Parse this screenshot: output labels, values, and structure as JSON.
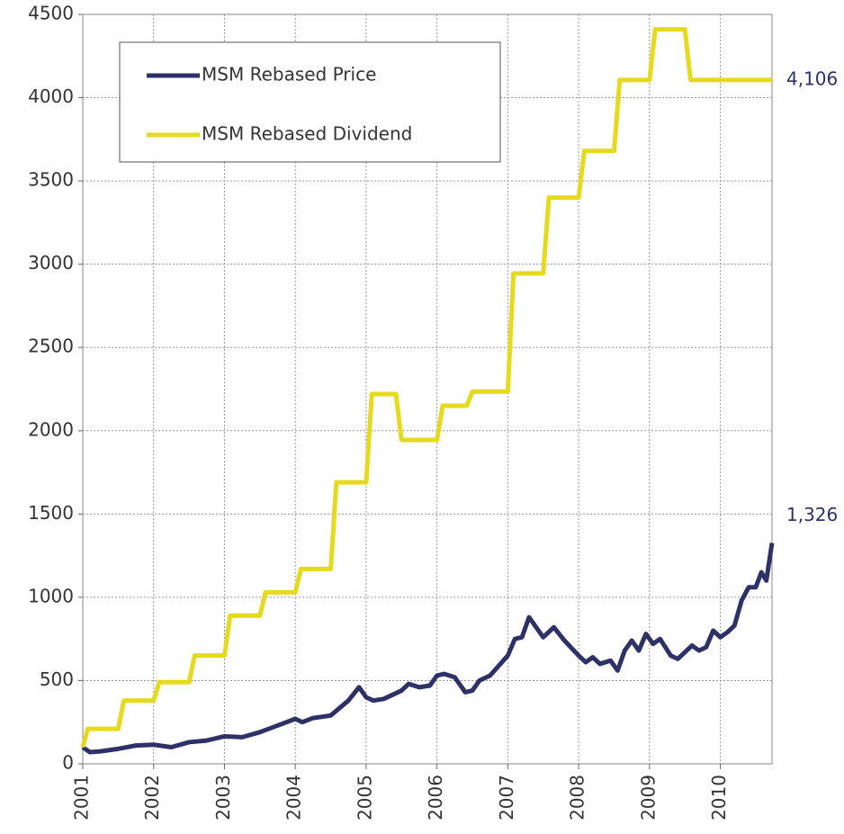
{
  "chart_data": {
    "type": "line",
    "xlim": [
      2001,
      2010.73
    ],
    "xticks": [
      2001,
      2002,
      2003,
      2004,
      2005,
      2006,
      2007,
      2008,
      2009,
      2010
    ],
    "ylim": [
      0,
      4500
    ],
    "yticks": [
      0,
      500,
      1000,
      1500,
      2000,
      2500,
      3000,
      3500,
      4000,
      4500
    ],
    "grid": true,
    "legend": "upper left",
    "series": [
      {
        "name": "MSM Rebased Price",
        "color": "#2e3168",
        "end_label": "1,326",
        "x": [
          2001.0,
          2001.1,
          2001.25,
          2001.5,
          2001.75,
          2002.0,
          2002.25,
          2002.5,
          2002.75,
          2003.0,
          2003.25,
          2003.5,
          2003.75,
          2004.0,
          2004.1,
          2004.25,
          2004.5,
          2004.75,
          2004.9,
          2005.0,
          2005.1,
          2005.25,
          2005.5,
          2005.6,
          2005.75,
          2005.9,
          2006.0,
          2006.1,
          2006.25,
          2006.4,
          2006.5,
          2006.6,
          2006.75,
          2007.0,
          2007.1,
          2007.2,
          2007.3,
          2007.5,
          2007.65,
          2007.8,
          2008.0,
          2008.1,
          2008.2,
          2008.3,
          2008.45,
          2008.55,
          2008.65,
          2008.75,
          2008.85,
          2008.95,
          2009.05,
          2009.15,
          2009.3,
          2009.4,
          2009.6,
          2009.7,
          2009.8,
          2009.9,
          2010.0,
          2010.1,
          2010.2,
          2010.3,
          2010.4,
          2010.5,
          2010.58,
          2010.65,
          2010.73
        ],
        "values": [
          100,
          70,
          75,
          90,
          110,
          115,
          100,
          130,
          140,
          165,
          160,
          190,
          230,
          270,
          250,
          275,
          290,
          380,
          460,
          400,
          380,
          390,
          440,
          480,
          460,
          470,
          530,
          540,
          520,
          430,
          440,
          500,
          530,
          650,
          750,
          760,
          880,
          760,
          820,
          740,
          650,
          610,
          640,
          600,
          620,
          560,
          680,
          740,
          680,
          780,
          720,
          750,
          650,
          630,
          710,
          680,
          700,
          800,
          760,
          790,
          830,
          980,
          1060,
          1060,
          1150,
          1100,
          1326
        ]
      },
      {
        "name": "MSM Rebased Dividend",
        "color": "#e6da1f",
        "end_label": "4,106",
        "x": [
          2001.0,
          2001.07,
          2001.5,
          2001.58,
          2002.0,
          2002.08,
          2002.5,
          2002.58,
          2003.0,
          2003.08,
          2003.5,
          2003.58,
          2004.0,
          2004.08,
          2004.5,
          2004.58,
          2005.0,
          2005.08,
          2005.42,
          2005.5,
          2006.0,
          2006.08,
          2006.42,
          2006.5,
          2007.0,
          2007.08,
          2007.5,
          2007.58,
          2008.0,
          2008.08,
          2008.5,
          2008.58,
          2009.0,
          2009.08,
          2009.5,
          2009.58,
          2010.73
        ],
        "values": [
          100,
          210,
          210,
          380,
          380,
          490,
          490,
          650,
          650,
          890,
          890,
          1030,
          1030,
          1170,
          1170,
          1690,
          1690,
          2220,
          2220,
          1945,
          1945,
          2150,
          2150,
          2235,
          2235,
          2945,
          2945,
          3400,
          3400,
          3680,
          3680,
          4106,
          4106,
          4410,
          4410,
          4106,
          4106
        ]
      }
    ]
  }
}
